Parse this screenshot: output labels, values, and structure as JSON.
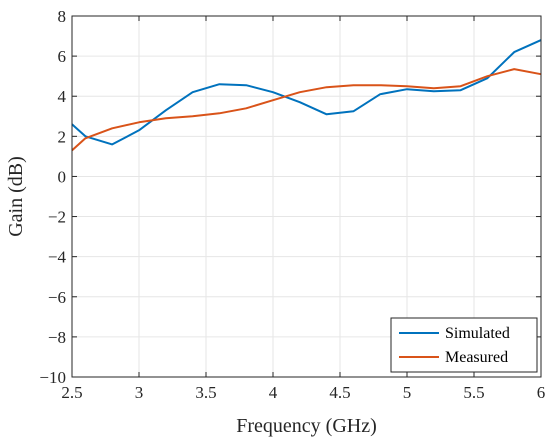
{
  "chart_data": {
    "type": "line",
    "xlabel": "Frequency (GHz)",
    "ylabel": "Gain (dB)",
    "xlim": [
      2.5,
      6
    ],
    "ylim": [
      -10,
      8
    ],
    "xticks": [
      2.5,
      3,
      3.5,
      4,
      4.5,
      5,
      5.5,
      6
    ],
    "xtick_labels": [
      "2.5",
      "3",
      "3.5",
      "4",
      "4.5",
      "5",
      "5.5",
      "6"
    ],
    "yticks": [
      -10,
      -8,
      -6,
      -4,
      -2,
      0,
      2,
      4,
      6,
      8
    ],
    "ytick_labels": [
      "−10",
      "−8",
      "−6",
      "−4",
      "−2",
      "0",
      "2",
      "4",
      "6",
      "8"
    ],
    "grid": true,
    "legend_position": "bottom-right",
    "series": [
      {
        "name": "Simulated",
        "color": "#0072BD",
        "x": [
          2.5,
          2.6,
          2.8,
          3.0,
          3.2,
          3.4,
          3.6,
          3.8,
          4.0,
          4.2,
          4.4,
          4.6,
          4.8,
          5.0,
          5.2,
          5.4,
          5.6,
          5.8,
          6.0
        ],
        "y": [
          2.6,
          2.0,
          1.6,
          2.3,
          3.3,
          4.2,
          4.6,
          4.55,
          4.2,
          3.7,
          3.1,
          3.25,
          4.1,
          4.35,
          4.25,
          4.3,
          4.9,
          6.2,
          6.8
        ]
      },
      {
        "name": "Measured",
        "color": "#D95319",
        "x": [
          2.5,
          2.6,
          2.8,
          3.0,
          3.2,
          3.4,
          3.6,
          3.8,
          4.0,
          4.2,
          4.4,
          4.6,
          4.8,
          5.0,
          5.2,
          5.4,
          5.6,
          5.8,
          6.0
        ],
        "y": [
          1.3,
          1.9,
          2.4,
          2.7,
          2.9,
          3.0,
          3.15,
          3.4,
          3.8,
          4.2,
          4.45,
          4.55,
          4.55,
          4.5,
          4.4,
          4.5,
          5.0,
          5.35,
          5.1
        ]
      }
    ]
  }
}
